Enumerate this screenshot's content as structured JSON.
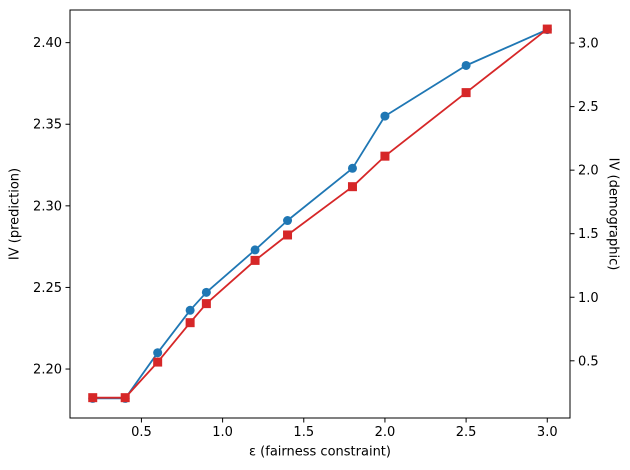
{
  "chart_data": {
    "type": "line",
    "title": "",
    "xlabel": "ε (fairness constraint)",
    "ylabel_left": "IV (prediction)",
    "ylabel_right": "IV (demographic)",
    "x": [
      0.2,
      0.4,
      0.6,
      0.8,
      0.9,
      1.2,
      1.4,
      1.8,
      2.0,
      2.5,
      3.0
    ],
    "series": [
      {
        "name": "IV (prediction)",
        "axis": "left",
        "color": "#1f77b4",
        "marker": "circle",
        "values": [
          2.182,
          2.182,
          2.21,
          2.236,
          2.247,
          2.273,
          2.291,
          2.323,
          2.355,
          2.386,
          2.408
        ]
      },
      {
        "name": "IV (demographic)",
        "axis": "right",
        "color": "#d62728",
        "marker": "square",
        "values": [
          0.21,
          0.21,
          0.49,
          0.8,
          0.95,
          1.29,
          1.49,
          1.87,
          2.11,
          2.61,
          3.11
        ]
      }
    ],
    "xlim": [
      0.06,
      3.14
    ],
    "ylim_left": [
      2.17,
      2.42
    ],
    "ylim_right": [
      0.05,
      3.26
    ],
    "xticks": [
      0.5,
      1.0,
      1.5,
      2.0,
      2.5,
      3.0
    ],
    "xtick_labels": [
      "0.5",
      "1.0",
      "1.5",
      "2.0",
      "2.5",
      "3.0"
    ],
    "yticks_left": [
      2.2,
      2.25,
      2.3,
      2.35,
      2.4
    ],
    "ytick_labels_left": [
      "2.20",
      "2.25",
      "2.30",
      "2.35",
      "2.40"
    ],
    "yticks_right": [
      0.5,
      1.0,
      1.5,
      2.0,
      2.5,
      3.0
    ],
    "ytick_labels_right": [
      "0.5",
      "1.0",
      "1.5",
      "2.0",
      "2.5",
      "3.0"
    ],
    "grid": false,
    "legend_position": "none",
    "axis_label_colors": {
      "left": "#1f77b4",
      "right": "#d62728"
    },
    "tick_label_color": "#000000",
    "spine_color": "#000000",
    "background": "#ffffff"
  }
}
